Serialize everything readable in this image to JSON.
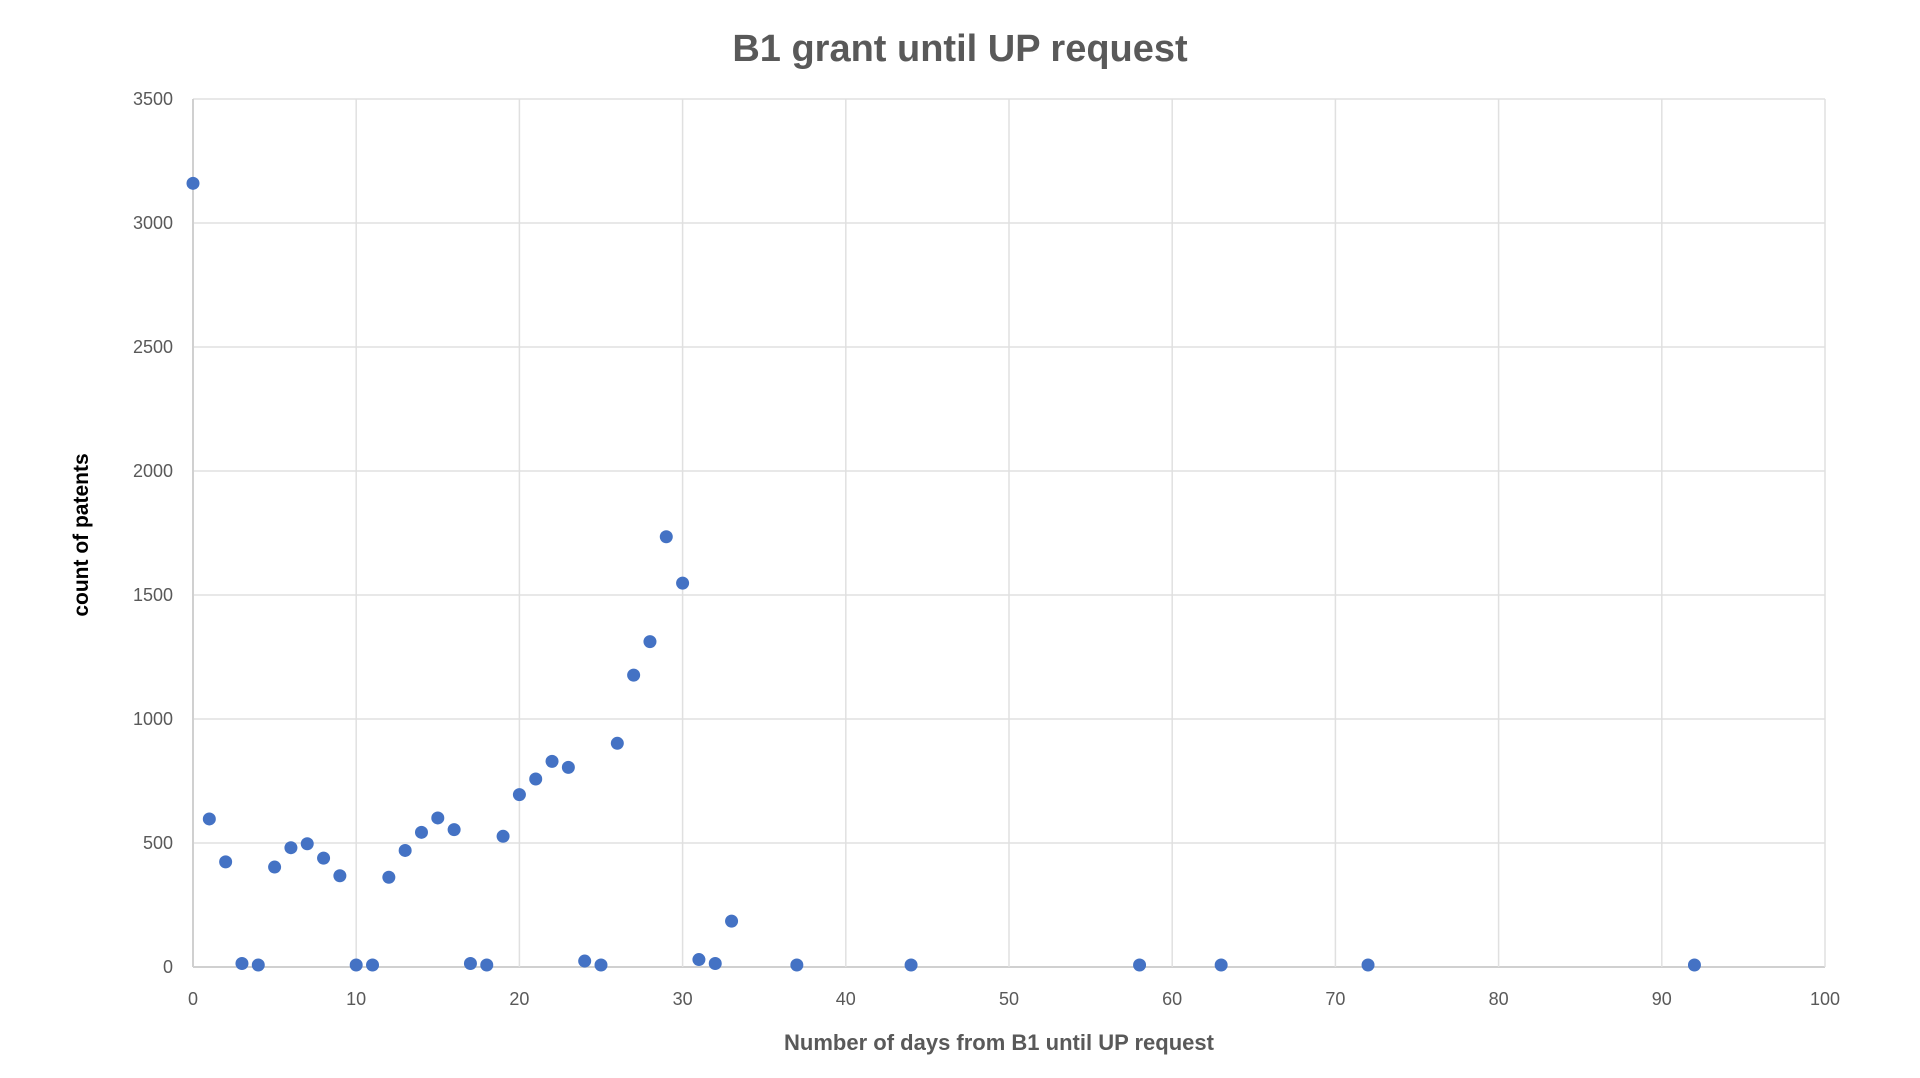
{
  "chart_data": {
    "type": "scatter",
    "title": "B1 grant until UP request",
    "xlabel": "Number of days from B1 until UP request",
    "ylabel": "count of patents",
    "xlim": [
      0,
      100
    ],
    "ylim": [
      0,
      3500
    ],
    "x_ticks": [
      0,
      10,
      20,
      30,
      40,
      50,
      60,
      70,
      80,
      90,
      100
    ],
    "y_ticks": [
      0,
      500,
      1000,
      1500,
      2000,
      2500,
      3000,
      3500
    ],
    "grid": true,
    "legend": null,
    "marker_color": "#4472C4",
    "series": [
      {
        "name": "count of patents",
        "points": [
          [
            0,
            3160
          ],
          [
            1,
            597
          ],
          [
            2,
            424
          ],
          [
            3,
            14
          ],
          [
            4,
            8
          ],
          [
            5,
            403
          ],
          [
            6,
            481
          ],
          [
            7,
            497
          ],
          [
            8,
            439
          ],
          [
            9,
            368
          ],
          [
            10,
            8
          ],
          [
            11,
            8
          ],
          [
            12,
            362
          ],
          [
            13,
            470
          ],
          [
            14,
            543
          ],
          [
            15,
            601
          ],
          [
            16,
            554
          ],
          [
            17,
            14
          ],
          [
            18,
            8
          ],
          [
            19,
            527
          ],
          [
            20,
            695
          ],
          [
            21,
            758
          ],
          [
            22,
            829
          ],
          [
            23,
            805
          ],
          [
            24,
            24
          ],
          [
            25,
            8
          ],
          [
            26,
            902
          ],
          [
            27,
            1177
          ],
          [
            28,
            1312
          ],
          [
            29,
            1735
          ],
          [
            30,
            1548
          ],
          [
            31,
            30
          ],
          [
            32,
            14
          ],
          [
            33,
            185
          ],
          [
            37,
            8
          ],
          [
            44,
            8
          ],
          [
            58,
            8
          ],
          [
            63,
            8
          ],
          [
            72,
            8
          ],
          [
            92,
            8
          ]
        ]
      }
    ]
  }
}
